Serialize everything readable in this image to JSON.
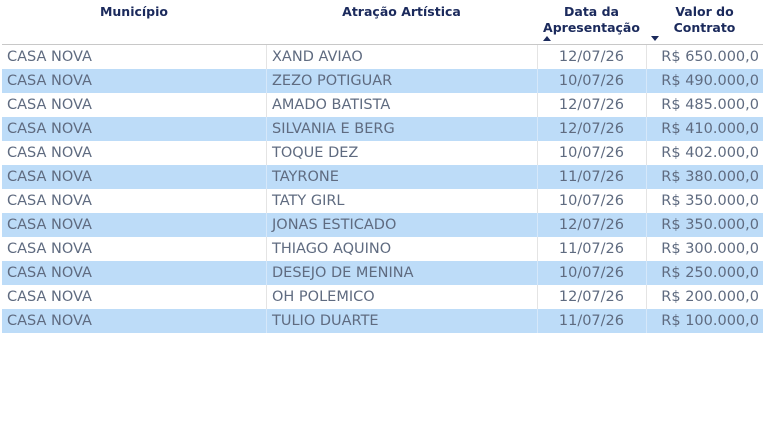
{
  "table": {
    "columns": [
      "Município",
      "Atração Artística",
      "Data da Apresentação",
      "Valor do Contrato"
    ],
    "rows": [
      [
        "CASA NOVA",
        "XAND AVIAO",
        "12/07/26",
        "R$ 650.000,0"
      ],
      [
        "CASA NOVA",
        "ZEZO POTIGUAR",
        "10/07/26",
        "R$ 490.000,0"
      ],
      [
        "CASA NOVA",
        "AMADO BATISTA",
        "12/07/26",
        "R$ 485.000,0"
      ],
      [
        "CASA NOVA",
        "SILVANIA E BERG",
        "12/07/26",
        "R$ 410.000,0"
      ],
      [
        "CASA NOVA",
        "TOQUE DEZ",
        "10/07/26",
        "R$ 402.000,0"
      ],
      [
        "CASA NOVA",
        "TAYRONE",
        "11/07/26",
        "R$ 380.000,0"
      ],
      [
        "CASA NOVA",
        "TATY GIRL",
        "10/07/26",
        "R$ 350.000,0"
      ],
      [
        "CASA NOVA",
        "JONAS ESTICADO",
        "12/07/26",
        "R$ 350.000,0"
      ],
      [
        "CASA NOVA",
        "THIAGO AQUINO",
        "11/07/26",
        "R$ 300.000,0"
      ],
      [
        "CASA NOVA",
        "DESEJO DE MENINA",
        "10/07/26",
        "R$ 250.000,0"
      ],
      [
        "CASA NOVA",
        "OH POLEMICO",
        "12/07/26",
        "R$ 200.000,0"
      ],
      [
        "CASA NOVA",
        "TULIO DUARTE",
        "11/07/26",
        "R$ 100.000,0"
      ]
    ]
  }
}
